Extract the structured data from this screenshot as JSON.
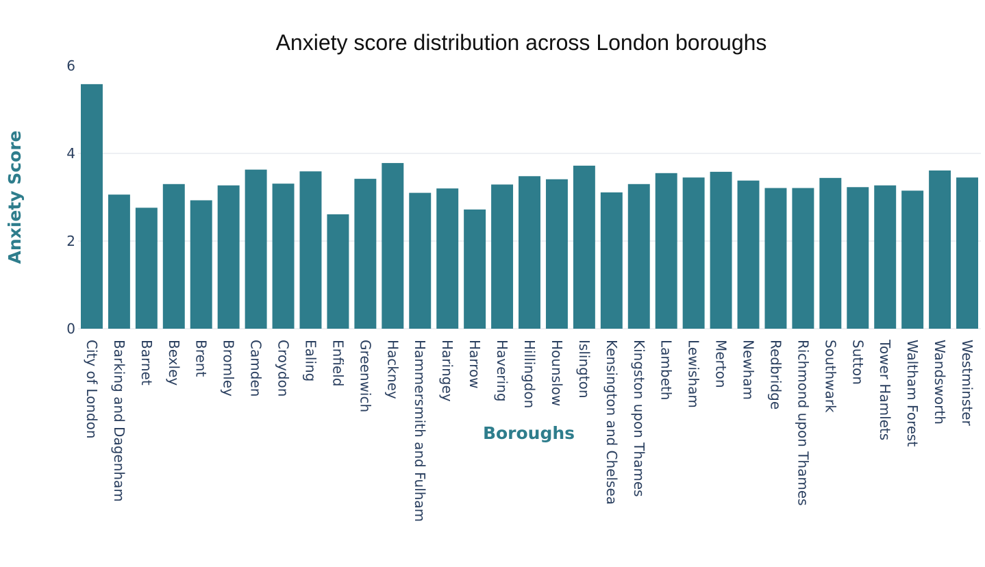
{
  "chart_data": {
    "type": "bar",
    "title": "Anxiety score distribution across London boroughs",
    "xlabel": "Boroughs",
    "ylabel": "Anxiety Score",
    "ylim": [
      0,
      6
    ],
    "yticks": [
      "0",
      "2",
      "4",
      "6"
    ],
    "grid": true,
    "bar_color": "#2e7d8c",
    "axis_title_color": "#2e7d8c",
    "categories": [
      "City of London",
      "Barking and Dagenham",
      "Barnet",
      "Bexley",
      "Brent",
      "Bromley",
      "Camden",
      "Croydon",
      "Ealing",
      "Enfield",
      "Greenwich",
      "Hackney",
      "Hammersmith and Fulham",
      "Haringey",
      "Harrow",
      "Havering",
      "Hillingdon",
      "Hounslow",
      "Islington",
      "Kensington and Chelsea",
      "Kingston upon Thames",
      "Lambeth",
      "Lewisham",
      "Merton",
      "Newham",
      "Redbridge",
      "Richmond upon Thames",
      "Southwark",
      "Sutton",
      "Tower Hamlets",
      "Waltham Forest",
      "Wandsworth",
      "Westminster"
    ],
    "values": [
      5.58,
      3.06,
      2.76,
      3.3,
      2.93,
      3.27,
      3.63,
      3.31,
      3.59,
      2.61,
      3.42,
      3.78,
      3.1,
      3.2,
      2.72,
      3.29,
      3.48,
      3.41,
      3.72,
      3.11,
      3.3,
      3.55,
      3.45,
      3.58,
      3.38,
      3.21,
      3.21,
      3.44,
      3.23,
      3.27,
      3.15,
      3.61,
      3.45
    ]
  }
}
